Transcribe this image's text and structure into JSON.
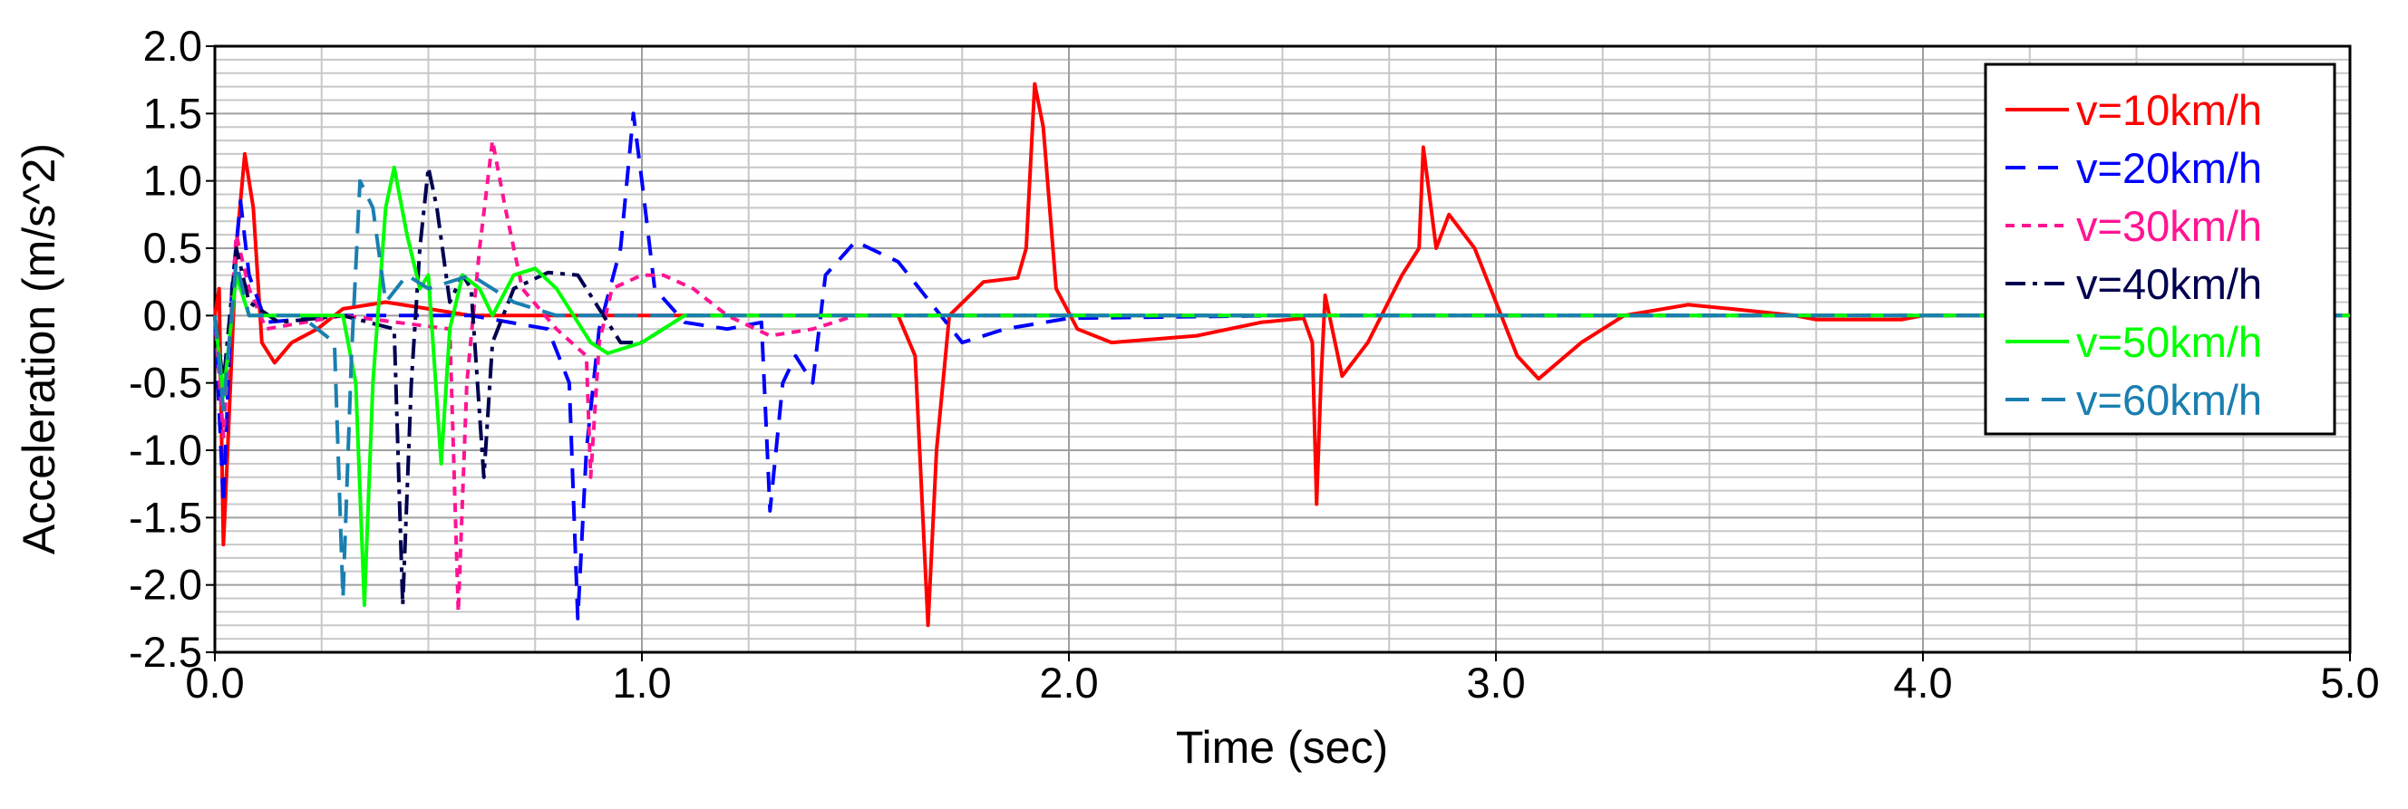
{
  "chart_data": {
    "type": "line",
    "xlabel": "Time (sec)",
    "ylabel": "Acceleration (m/s^2)",
    "xlim": [
      0,
      5
    ],
    "ylim": [
      -2.5,
      2.0
    ],
    "xticks": [
      {
        "value": 0,
        "label": "0.0"
      },
      {
        "value": 1,
        "label": "1.0"
      },
      {
        "value": 2,
        "label": "2.0"
      },
      {
        "value": 3,
        "label": "3.0"
      },
      {
        "value": 4,
        "label": "4.0"
      },
      {
        "value": 5,
        "label": "5.0"
      }
    ],
    "yticks": [
      -2.5,
      {
        "value": -2,
        "label": "-2.0"
      },
      -1.5,
      {
        "value": -1,
        "label": "-1.0"
      },
      -0.5,
      {
        "value": 0,
        "label": "0.0"
      },
      0.5,
      {
        "value": 1,
        "label": "1.0"
      },
      1.5,
      {
        "value": 2,
        "label": "2.0"
      }
    ],
    "grid": true,
    "minor_grid_divisions": {
      "x": 4,
      "y": 5
    },
    "legend": "upper right",
    "series": [
      {
        "name": "v=10km/h",
        "color": "#ff0000",
        "dash": "none",
        "x": [
          0,
          0.01,
          0.02,
          0.03,
          0.05,
          0.07,
          0.09,
          0.11,
          0.14,
          0.18,
          0.24,
          0.3,
          0.4,
          0.5,
          0.6,
          1.0,
          1.3,
          1.6,
          1.64,
          1.67,
          1.69,
          1.72,
          1.8,
          1.88,
          1.9,
          1.92,
          1.94,
          1.97,
          2.02,
          2.1,
          2.3,
          2.45,
          2.55,
          2.57,
          2.58,
          2.59,
          2.6,
          2.64,
          2.7,
          2.78,
          2.82,
          2.83,
          2.86,
          2.89,
          2.95,
          3.05,
          3.1,
          3.2,
          3.3,
          3.45,
          3.55,
          3.7,
          3.75,
          3.95,
          4.0,
          5.0
        ],
        "values": [
          0,
          0.2,
          -1.7,
          -1.0,
          0.5,
          1.2,
          0.8,
          -0.2,
          -0.35,
          -0.2,
          -0.1,
          0.05,
          0.1,
          0.05,
          0,
          0,
          0,
          0,
          -0.3,
          -2.3,
          -1.0,
          0,
          0.25,
          0.28,
          0.5,
          1.72,
          1.4,
          0.2,
          -0.1,
          -0.2,
          -0.15,
          -0.05,
          -0.02,
          -0.2,
          -1.4,
          -0.5,
          0.15,
          -0.45,
          -0.2,
          0.3,
          0.5,
          1.25,
          0.5,
          0.75,
          0.5,
          -0.3,
          -0.47,
          -0.2,
          0,
          0.08,
          0.05,
          0,
          -0.03,
          -0.03,
          0,
          0
        ]
      },
      {
        "name": "v=20km/h",
        "color": "#0000ff",
        "dash": "22 14",
        "x": [
          0,
          0.02,
          0.04,
          0.06,
          0.08,
          0.12,
          0.3,
          0.6,
          0.78,
          0.83,
          0.85,
          0.87,
          0.9,
          0.95,
          0.98,
          1.0,
          1.03,
          1.1,
          1.2,
          1.28,
          1.3,
          1.33,
          1.36,
          1.4,
          1.43,
          1.5,
          1.6,
          1.7,
          1.75,
          1.85,
          2.0,
          2.5,
          5.0
        ],
        "values": [
          0,
          -1.4,
          0.2,
          0.85,
          0.3,
          -0.05,
          0,
          0,
          -0.1,
          -0.5,
          -2.25,
          -1.0,
          -0.1,
          0.5,
          1.5,
          1.0,
          0.2,
          -0.05,
          -0.1,
          -0.05,
          -1.45,
          -0.5,
          -0.3,
          -0.5,
          0.3,
          0.55,
          0.4,
          0,
          -0.2,
          -0.1,
          -0.02,
          0,
          0
        ]
      },
      {
        "name": "v=30km/h",
        "color": "#ff1493",
        "dash": "10 8",
        "x": [
          0,
          0.02,
          0.05,
          0.08,
          0.12,
          0.3,
          0.55,
          0.57,
          0.59,
          0.62,
          0.65,
          0.68,
          0.72,
          0.8,
          0.87,
          0.88,
          0.9,
          0.93,
          1.0,
          1.05,
          1.12,
          1.2,
          1.3,
          1.4,
          1.5,
          5.0
        ],
        "values": [
          0,
          -0.9,
          0.6,
          0.2,
          -0.1,
          0,
          -0.1,
          -2.2,
          -0.5,
          0.5,
          1.3,
          0.8,
          0.2,
          -0.1,
          -0.3,
          -1.2,
          -0.2,
          0.2,
          0.3,
          0.3,
          0.2,
          0,
          -0.15,
          -0.1,
          0,
          0
        ]
      },
      {
        "name": "v=40km/h",
        "color": "#000050",
        "dash": "22 8 5 8",
        "x": [
          0,
          0.02,
          0.05,
          0.08,
          0.15,
          0.3,
          0.42,
          0.44,
          0.46,
          0.48,
          0.5,
          0.52,
          0.55,
          0.58,
          0.6,
          0.63,
          0.65,
          0.7,
          0.78,
          0.85,
          0.9,
          0.95,
          1.0,
          1.1,
          1.2,
          5.0
        ],
        "values": [
          0,
          -0.5,
          0.5,
          0.1,
          -0.05,
          0,
          -0.1,
          -2.15,
          -0.5,
          0.5,
          1.1,
          0.8,
          0.1,
          0.3,
          0.2,
          -1.2,
          -0.2,
          0.2,
          0.32,
          0.3,
          0.05,
          -0.2,
          -0.2,
          0,
          0,
          0
        ]
      },
      {
        "name": "v=50km/h",
        "color": "#00ff00",
        "dash": "none",
        "x": [
          0,
          0.02,
          0.05,
          0.08,
          0.2,
          0.3,
          0.33,
          0.35,
          0.37,
          0.4,
          0.42,
          0.45,
          0.48,
          0.5,
          0.53,
          0.55,
          0.58,
          0.62,
          0.65,
          0.7,
          0.75,
          0.8,
          0.88,
          0.92,
          1.0,
          1.1,
          5.0
        ],
        "values": [
          0,
          -0.6,
          0.3,
          0,
          0,
          0,
          -0.5,
          -2.15,
          -0.5,
          0.8,
          1.1,
          0.6,
          0.2,
          0.3,
          -1.1,
          -0.1,
          0.3,
          0.2,
          0,
          0.3,
          0.35,
          0.2,
          -0.2,
          -0.28,
          -0.2,
          0,
          0
        ]
      },
      {
        "name": "v=60km/h",
        "color": "#1a7fb0",
        "dash": "26 14",
        "x": [
          0,
          0.02,
          0.05,
          0.08,
          0.2,
          0.28,
          0.3,
          0.32,
          0.34,
          0.37,
          0.4,
          0.45,
          0.5,
          0.6,
          0.7,
          0.8,
          5.0
        ],
        "values": [
          0,
          -0.7,
          0.4,
          0,
          0,
          -0.2,
          -2.1,
          -0.3,
          1.0,
          0.8,
          0.1,
          0.3,
          0.2,
          0.3,
          0.1,
          0,
          0
        ]
      }
    ]
  }
}
